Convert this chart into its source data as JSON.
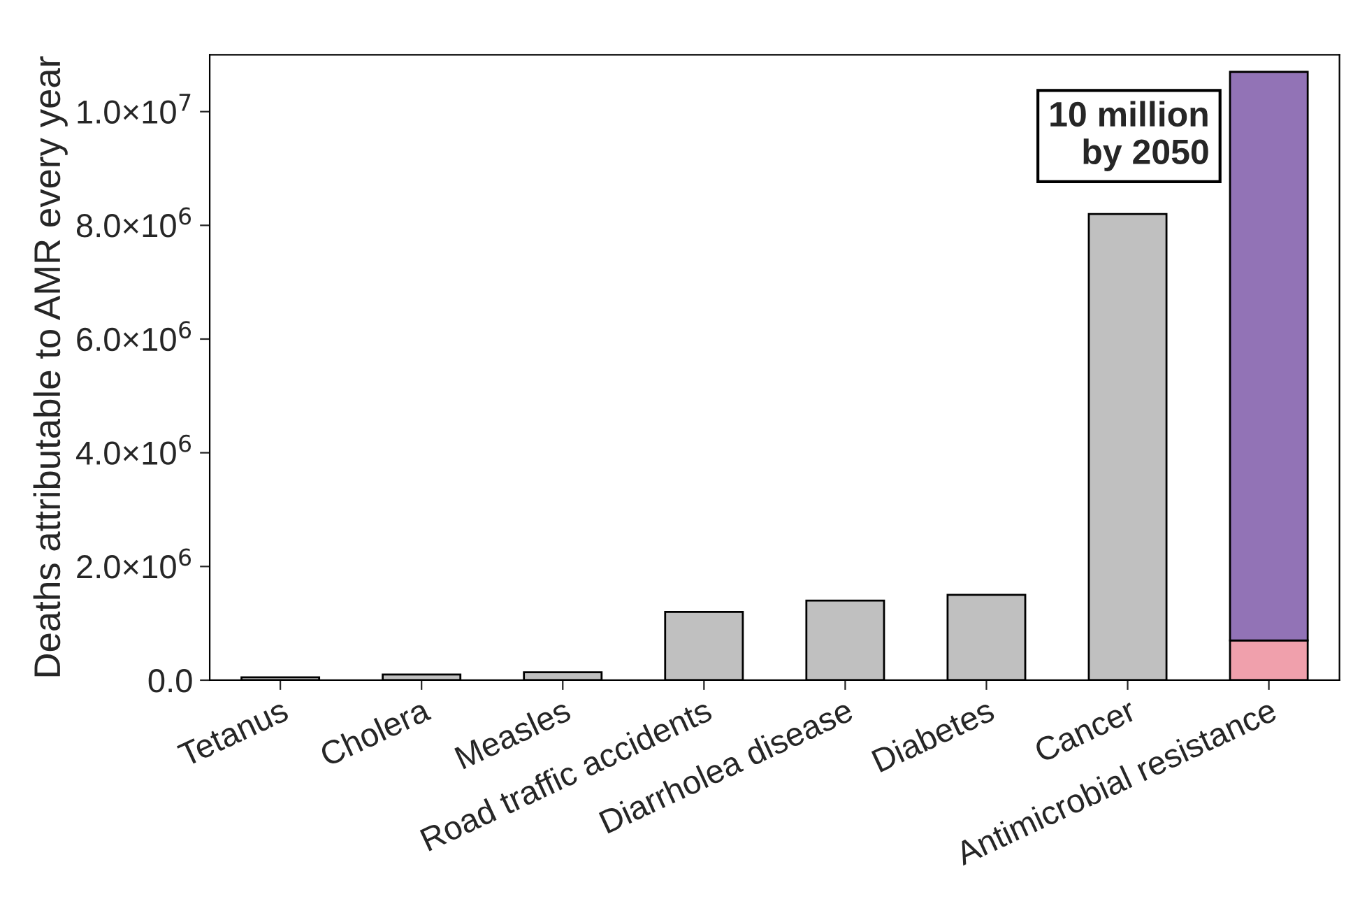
{
  "chart_data": {
    "type": "bar",
    "stacked": true,
    "ylabel": "Deaths attributable to AMR every year",
    "categories": [
      "Tetanus",
      "Cholera",
      "Measles",
      "Road traffic accidents",
      "Diarrholea disease",
      "Diabetes",
      "Cancer",
      "Antimicrobial resistance"
    ],
    "series": [
      {
        "colors": [
          "#c0c0c0",
          "#c0c0c0",
          "#c0c0c0",
          "#c0c0c0",
          "#c0c0c0",
          "#c0c0c0",
          "#c0c0c0",
          "#f0a0ac"
        ],
        "values": [
          50000,
          100000,
          140000,
          1200000,
          1400000,
          1500000,
          8200000,
          700000
        ]
      },
      {
        "color": "#9273b6",
        "values": [
          null,
          null,
          null,
          null,
          null,
          null,
          null,
          10000000
        ]
      }
    ],
    "ylim": [
      0,
      11000000
    ],
    "yticks": [
      {
        "value": 0,
        "label": "0.0"
      },
      {
        "value": 2000000,
        "label": "2.0×10$^{6}$"
      },
      {
        "value": 4000000,
        "label": "4.0×10$^{6}$"
      },
      {
        "value": 6000000,
        "label": "6.0×10$^{6}$"
      },
      {
        "value": 8000000,
        "label": "8.0×10$^{6}$"
      },
      {
        "value": 10000000,
        "label": "1.0×10$^{7}$"
      }
    ],
    "annotations": [
      "10 million\nby 2050"
    ],
    "grid": false,
    "legend": false
  }
}
